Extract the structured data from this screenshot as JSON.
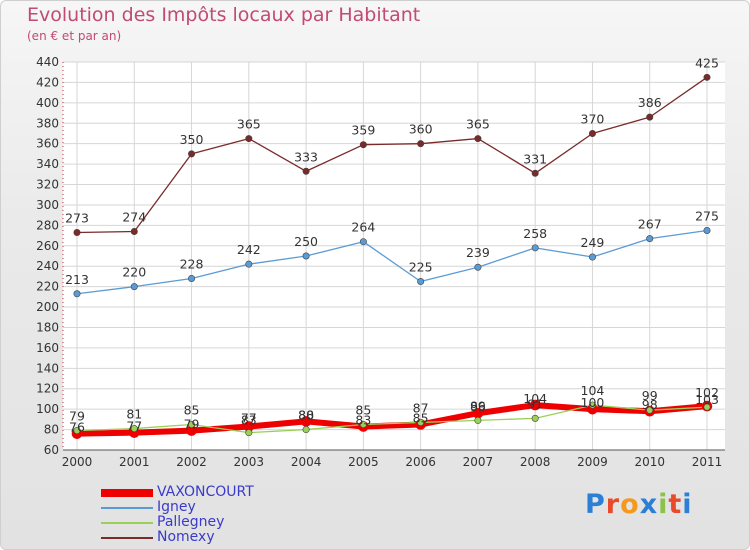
{
  "title": "Evolution des Impôts locaux par Habitant",
  "subtitle": "(en € et par an)",
  "logo": {
    "letters": [
      "P",
      "r",
      "o",
      "x",
      "i",
      "t",
      "i"
    ],
    "colors": [
      "#2b7fd6",
      "#e84a2a",
      "#f39a1e",
      "#2b7fd6",
      "#8bc34a",
      "#e84a2a",
      "#2b7fd6"
    ]
  },
  "chart_data": {
    "type": "line",
    "title": "Evolution des Impôts locaux par Habitant",
    "subtitle": "(en € et par an)",
    "x": [
      "2000",
      "2001",
      "2002",
      "2003",
      "2004",
      "2005",
      "2006",
      "2007",
      "2008",
      "2009",
      "2010",
      "2011"
    ],
    "ylim": [
      60,
      440
    ],
    "yticks": [
      60,
      80,
      100,
      120,
      140,
      160,
      180,
      200,
      220,
      240,
      260,
      280,
      300,
      320,
      340,
      360,
      380,
      400,
      420,
      440
    ],
    "grid": true,
    "legend_position": "bottom-left",
    "series": [
      {
        "name": "Nomexy",
        "color": "#7a2a2a",
        "values": [
          273,
          274,
          350,
          365,
          333,
          359,
          360,
          365,
          331,
          370,
          386,
          425
        ]
      },
      {
        "name": "Igney",
        "color": "#5b9bd5",
        "values": [
          213,
          220,
          228,
          242,
          250,
          264,
          225,
          239,
          258,
          249,
          267,
          275
        ]
      },
      {
        "name": "Pallegney",
        "color": "#9ad05a",
        "values": [
          79,
          81,
          85,
          77,
          80,
          85,
          87,
          89,
          91,
          104,
          99,
          102
        ]
      },
      {
        "name": "VAXONCOURT",
        "color": "#ee0000",
        "values": [
          76,
          77,
          79,
          83,
          88,
          83,
          85,
          96,
          104,
          100,
          98,
          103
        ]
      }
    ],
    "legend_order": [
      "VAXONCOURT",
      "Igney",
      "Pallegney",
      "Nomexy"
    ]
  }
}
